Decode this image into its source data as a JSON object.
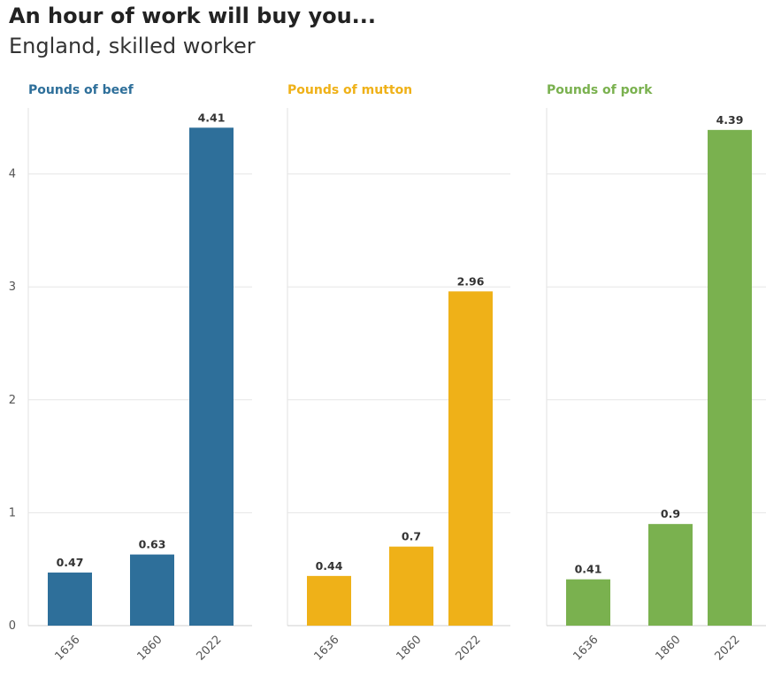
{
  "title": "An hour of work will buy you...",
  "subtitle": "England, skilled worker",
  "chart_data": {
    "type": "bar",
    "categories": [
      "1636",
      "1860",
      "2022"
    ],
    "ylim": [
      0,
      4.6
    ],
    "yticks": [
      0,
      1,
      2,
      3,
      4
    ],
    "grid": true,
    "panels": [
      {
        "title": "Pounds of beef",
        "color": "#2e6f9a",
        "values": [
          0.47,
          0.63,
          4.41
        ],
        "labels": [
          "0.47",
          "0.63",
          "4.41"
        ]
      },
      {
        "title": "Pounds of mutton",
        "color": "#efb118",
        "values": [
          0.44,
          0.7,
          2.96
        ],
        "labels": [
          "0.44",
          "0.7",
          "2.96"
        ]
      },
      {
        "title": "Pounds of pork",
        "color": "#7ab14f",
        "values": [
          0.41,
          0.9,
          4.39
        ],
        "labels": [
          "0.41",
          "0.9",
          "4.39"
        ]
      }
    ]
  }
}
